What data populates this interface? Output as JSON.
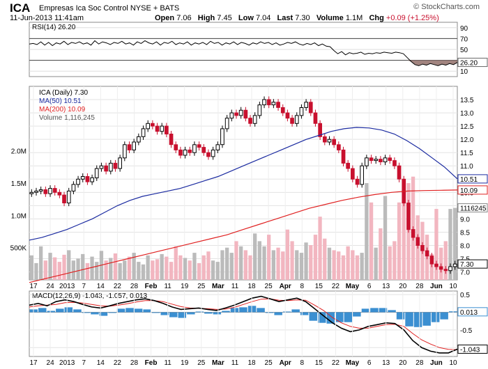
{
  "header": {
    "ticker": "ICA",
    "company": "Empresas Ica Soc Control",
    "exchange": "NYSE + BATS",
    "timestamp": "11-Jun-2013 11:41am",
    "credit": "© StockCharts.com",
    "quote": {
      "open_label": "Open",
      "open": "7.06",
      "high_label": "High",
      "high": "7.45",
      "low_label": "Low",
      "low": "7.04",
      "last_label": "Last",
      "last": "7.30",
      "volume_label": "Volume",
      "volume": "1.1M",
      "chg_label": "Chg",
      "chg": "+0.09 (+1.25%)"
    }
  },
  "chart_data": [
    {
      "type": "line",
      "panel": "rsi",
      "label": "RSI(14) 26.20",
      "ylim": [
        0,
        100
      ],
      "yticks": [
        90,
        70,
        50,
        30,
        10
      ],
      "reference_lines": [
        70,
        30
      ],
      "current_value_label": "26.20",
      "values": [
        60,
        61,
        59,
        64,
        58,
        63,
        57,
        62,
        60,
        65,
        59,
        63,
        61,
        64,
        60,
        62,
        58,
        66,
        60,
        64,
        62,
        59,
        63,
        61,
        65,
        60,
        62,
        58,
        64,
        61,
        66,
        62,
        60,
        64,
        58,
        63,
        61,
        65,
        59,
        62,
        60,
        64,
        58,
        62,
        60,
        63,
        59,
        65,
        61,
        63,
        58,
        62,
        60,
        64,
        59,
        63,
        61,
        58,
        62,
        60,
        64,
        61,
        63,
        59,
        62,
        58,
        60,
        63,
        61,
        64,
        60,
        58,
        61,
        59,
        62,
        57,
        60,
        56,
        55,
        48,
        42,
        46,
        40,
        44,
        42,
        43,
        45,
        41,
        43,
        42,
        44,
        43,
        45,
        44,
        43,
        45,
        44,
        42,
        35,
        28,
        22,
        20,
        23,
        21,
        24,
        22,
        20,
        23,
        21,
        24,
        22,
        26
      ]
    },
    {
      "type": "candlestick",
      "panel": "price",
      "label": "ICA (Daily) 7.30",
      "ylim": [
        6.7,
        14.0
      ],
      "yticks": [
        13.5,
        13.0,
        12.5,
        12.0,
        11.5,
        11.0,
        10.5,
        10.0,
        9.5,
        9.0,
        8.5,
        8.0,
        7.5,
        7.0
      ],
      "x_tick_labels": [
        "17",
        "24",
        "2013",
        "7",
        "14",
        "22",
        "28",
        "Feb",
        "11",
        "19",
        "25",
        "Mar",
        "11",
        "18",
        "25",
        "Apr",
        "8",
        "15",
        "22",
        "May",
        "6",
        "13",
        "20",
        "28",
        "Jun",
        "10"
      ],
      "close": [
        10.0,
        10.05,
        10.1,
        9.95,
        10.15,
        10.0,
        9.9,
        9.6,
        10.05,
        10.3,
        10.5,
        10.6,
        10.4,
        10.55,
        10.9,
        11.0,
        10.8,
        11.1,
        10.9,
        11.3,
        11.8,
        11.6,
        11.9,
        12.1,
        12.4,
        12.6,
        12.5,
        12.3,
        12.5,
        12.2,
        11.8,
        11.6,
        11.4,
        11.6,
        11.5,
        11.8,
        11.7,
        11.5,
        11.35,
        11.6,
        11.8,
        12.4,
        12.8,
        13.0,
        12.9,
        13.1,
        12.8,
        12.6,
        12.9,
        13.3,
        13.5,
        13.3,
        13.4,
        13.2,
        13.0,
        12.8,
        12.6,
        12.9,
        13.2,
        13.4,
        13.0,
        12.6,
        12.1,
        11.9,
        12.0,
        11.8,
        11.6,
        11.1,
        10.9,
        10.5,
        10.3,
        11.0,
        11.3,
        11.2,
        11.25,
        11.15,
        11.3,
        11.2,
        11.0,
        10.5,
        9.6,
        8.6,
        8.3,
        8.0,
        7.8,
        7.6,
        7.3,
        7.2,
        7.1,
        7.05,
        7.2,
        7.3
      ],
      "series": [
        {
          "name": "MA(50) 10.51",
          "values": [
            8.2,
            8.3,
            8.45,
            8.6,
            8.8,
            9.0,
            9.25,
            9.5,
            9.7,
            9.85,
            9.95,
            10.05,
            10.15,
            10.3,
            10.45,
            10.6,
            10.8,
            11.0,
            11.2,
            11.4,
            11.6,
            11.8,
            12.0,
            12.15,
            12.3,
            12.4,
            12.45,
            12.43,
            12.35,
            12.2,
            11.95,
            11.65,
            11.3,
            10.95,
            10.51
          ]
        },
        {
          "name": "MA(200) 10.09",
          "values": [
            6.6,
            6.75,
            6.9,
            7.05,
            7.2,
            7.35,
            7.5,
            7.65,
            7.8,
            7.95,
            8.1,
            8.25,
            8.4,
            8.6,
            8.8,
            9.0,
            9.2,
            9.4,
            9.55,
            9.7,
            9.82,
            9.92,
            10.0,
            10.05,
            10.07,
            10.08,
            10.09
          ]
        }
      ],
      "current_value_labels": [
        "10.51",
        "10.09",
        "7.30"
      ],
      "volume": {
        "label": "Volume 1,116,245",
        "current_value_label": "1116245",
        "ylim": [
          0,
          3000000
        ],
        "yticks_labels": [
          "2.0M",
          "1.5M",
          "1.0M",
          "500K"
        ],
        "yticks_values": [
          2000000,
          1500000,
          1000000,
          500000
        ],
        "values": [
          380,
          260,
          520,
          300,
          420,
          350,
          280,
          390,
          460,
          300,
          330,
          400,
          260,
          360,
          280,
          450,
          300,
          340,
          410,
          260,
          300,
          360,
          420,
          280,
          240,
          380,
          300,
          320,
          400,
          360,
          280,
          520,
          380,
          340,
          300,
          420,
          260,
          380,
          440,
          300,
          280,
          460,
          500,
          420,
          600,
          520,
          460,
          380,
          720,
          600,
          520,
          700,
          460,
          500,
          440,
          780,
          600,
          460,
          420,
          580,
          540,
          700,
          980,
          640,
          500,
          460,
          440,
          380,
          520,
          460,
          380,
          420,
          1500,
          1200,
          500,
          800,
          1300,
          520,
          600,
          1200,
          1300,
          1500,
          1600,
          1000,
          900,
          700,
          400,
          1100,
          500,
          600,
          1100,
          1116
        ]
      }
    },
    {
      "type": "line",
      "panel": "macd",
      "label": "MACD(12,26,9) -1.043, -1.057, 0.013",
      "ylim": [
        -1.25,
        0.6
      ],
      "yticks": [
        0.5,
        0.0,
        -0.5,
        -1.0
      ],
      "current_value_labels": [
        "0.013",
        "-1.043"
      ],
      "series": [
        {
          "name": "MACD",
          "values": [
            0.2,
            0.25,
            0.18,
            0.3,
            0.35,
            0.3,
            0.22,
            0.15,
            0.12,
            0.18,
            0.25,
            0.3,
            0.35,
            0.38,
            0.33,
            0.25,
            0.15,
            0.08,
            0.1,
            0.12,
            0.08,
            0.05,
            0.12,
            0.2,
            0.3,
            0.4,
            0.45,
            0.38,
            0.3,
            0.35,
            0.4,
            0.3,
            0.1,
            -0.1,
            -0.3,
            -0.45,
            -0.55,
            -0.5,
            -0.4,
            -0.35,
            -0.3,
            -0.32,
            -0.5,
            -0.8,
            -1.0,
            -1.1,
            -1.15,
            -1.15,
            -1.043
          ]
        },
        {
          "name": "Signal",
          "values": [
            0.15,
            0.18,
            0.2,
            0.22,
            0.27,
            0.28,
            0.26,
            0.22,
            0.18,
            0.17,
            0.2,
            0.24,
            0.29,
            0.33,
            0.33,
            0.3,
            0.23,
            0.16,
            0.12,
            0.11,
            0.1,
            0.08,
            0.09,
            0.14,
            0.22,
            0.3,
            0.37,
            0.38,
            0.34,
            0.33,
            0.35,
            0.34,
            0.2,
            0.05,
            -0.15,
            -0.3,
            -0.4,
            -0.45,
            -0.45,
            -0.4,
            -0.35,
            -0.34,
            -0.4,
            -0.6,
            -0.78,
            -0.9,
            -1.0,
            -1.05,
            -1.057
          ]
        }
      ],
      "histogram": [
        0.04,
        0.06,
        0.02,
        0.05,
        0.07,
        0.04,
        0.0,
        -0.03,
        -0.05,
        0.0,
        0.05,
        0.06,
        0.05,
        0.04,
        0.0,
        -0.04,
        -0.07,
        -0.08,
        -0.03,
        0.01,
        -0.02,
        -0.03,
        0.02,
        0.06,
        0.07,
        0.09,
        0.06,
        0.0,
        -0.04,
        0.01,
        0.04,
        -0.04,
        -0.12,
        -0.15,
        -0.16,
        -0.14,
        -0.14,
        -0.06,
        0.05,
        0.06,
        0.06,
        0.03,
        -0.1,
        -0.2,
        -0.21,
        -0.19,
        -0.14,
        -0.1,
        0.013
      ]
    }
  ]
}
